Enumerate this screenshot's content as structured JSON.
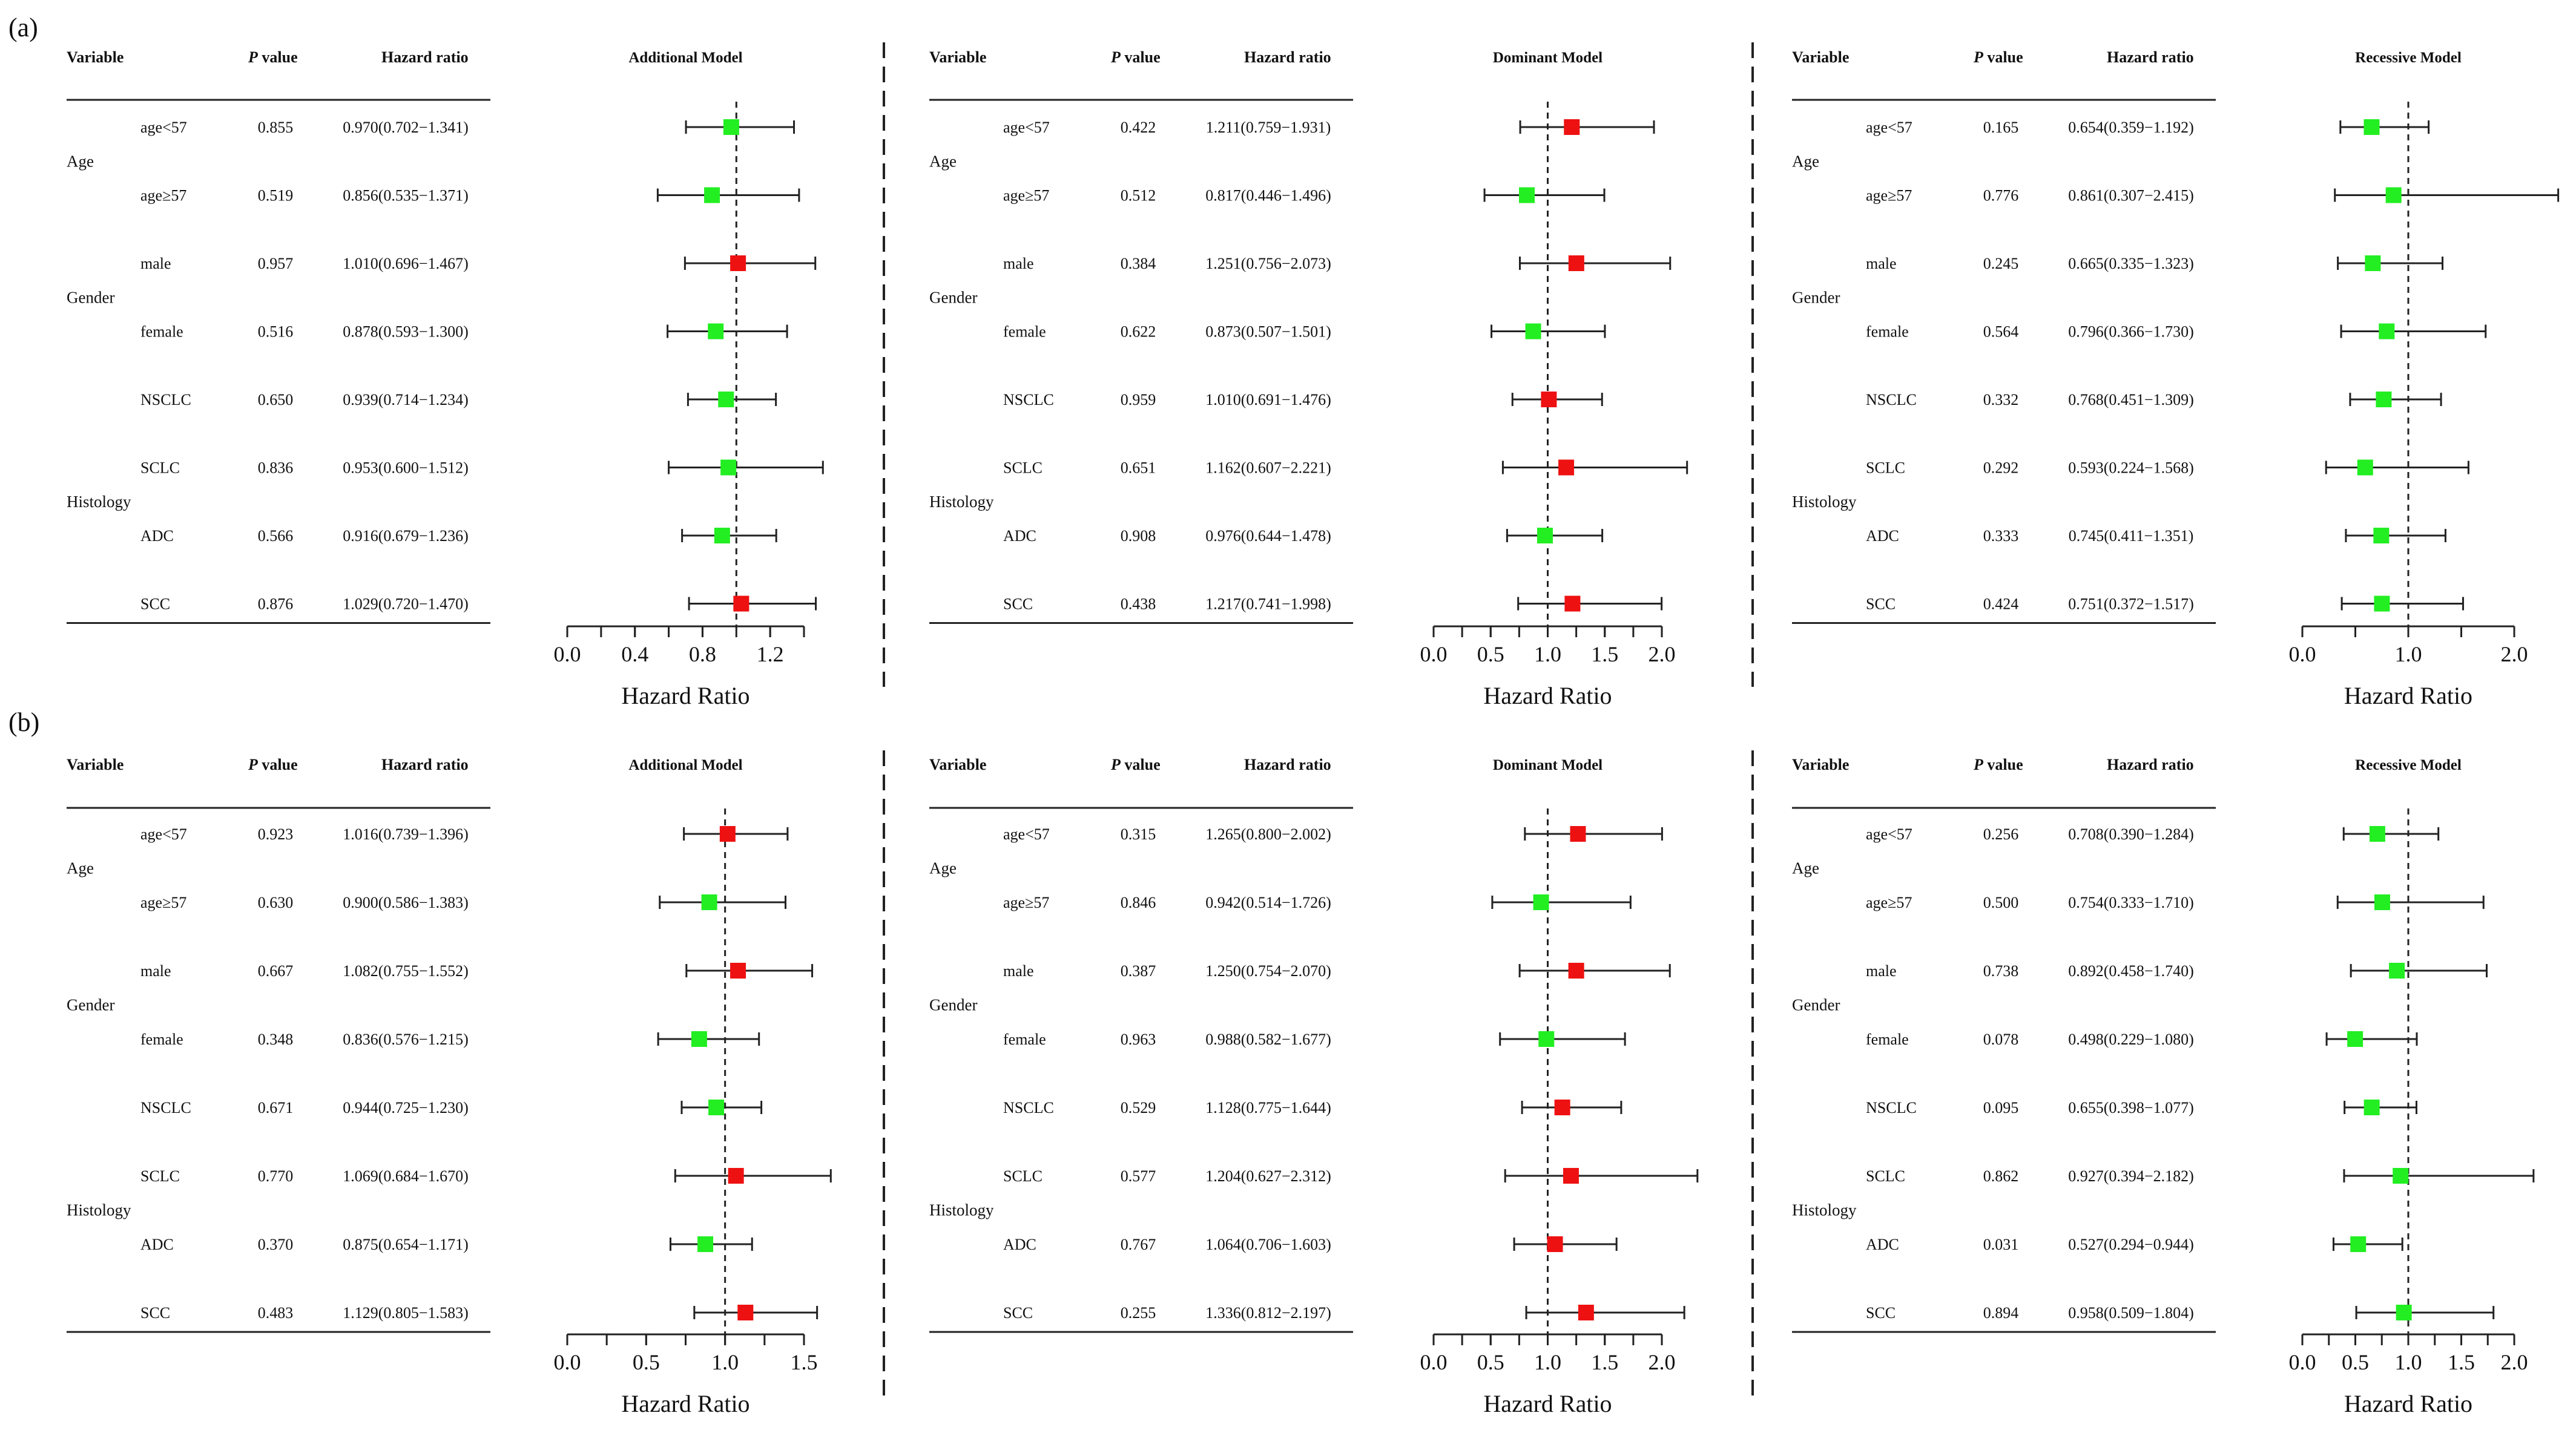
{
  "colors": {
    "protective": "#22ee22",
    "risk": "#ee1111",
    "line": "#222222"
  },
  "header": {
    "variable": "Variable",
    "p": "P",
    "value": " value",
    "hr": "Hazard ratio"
  },
  "xlabel": "Hazard Ratio",
  "chart_data": [
    {
      "panel": "(a)",
      "title": "Additional Model",
      "type": "forest",
      "xticks": [
        "0.0",
        "0.4",
        "0.8",
        "1.2"
      ],
      "xlim": [
        0.0,
        1.4
      ],
      "minor_step": 0.2,
      "reference": 1.0,
      "groups": [
        {
          "label": "Age",
          "rows": [
            0,
            1
          ]
        },
        {
          "label": "Gender",
          "rows": [
            2,
            3
          ]
        },
        {
          "label": "Histology",
          "rows": [
            4,
            5,
            6,
            7
          ]
        }
      ],
      "rows": [
        {
          "sub": "age<57",
          "p": "0.855",
          "hr_text": "0.970(0.702−1.341)",
          "hr": 0.97,
          "lo": 0.702,
          "hi": 1.341
        },
        {
          "sub": "age≥57",
          "p": "0.519",
          "hr_text": "0.856(0.535−1.371)",
          "hr": 0.856,
          "lo": 0.535,
          "hi": 1.371
        },
        {
          "sub": "male",
          "p": "0.957",
          "hr_text": "1.010(0.696−1.467)",
          "hr": 1.01,
          "lo": 0.696,
          "hi": 1.467
        },
        {
          "sub": "female",
          "p": "0.516",
          "hr_text": "0.878(0.593−1.300)",
          "hr": 0.878,
          "lo": 0.593,
          "hi": 1.3
        },
        {
          "sub": "NSCLC",
          "p": "0.650",
          "hr_text": "0.939(0.714−1.234)",
          "hr": 0.939,
          "lo": 0.714,
          "hi": 1.234
        },
        {
          "sub": "SCLC",
          "p": "0.836",
          "hr_text": "0.953(0.600−1.512)",
          "hr": 0.953,
          "lo": 0.6,
          "hi": 1.512
        },
        {
          "sub": "ADC",
          "p": "0.566",
          "hr_text": "0.916(0.679−1.236)",
          "hr": 0.916,
          "lo": 0.679,
          "hi": 1.236
        },
        {
          "sub": "SCC",
          "p": "0.876",
          "hr_text": "1.029(0.720−1.470)",
          "hr": 1.029,
          "lo": 0.72,
          "hi": 1.47
        }
      ]
    },
    {
      "panel": "(a)",
      "title": "Dominant Model",
      "type": "forest",
      "xticks": [
        "0.0",
        "0.5",
        "1.0",
        "1.5",
        "2.0"
      ],
      "xlim": [
        0.0,
        2.0
      ],
      "minor_step": 0.25,
      "reference": 1.0,
      "groups": [
        {
          "label": "Age",
          "rows": [
            0,
            1
          ]
        },
        {
          "label": "Gender",
          "rows": [
            2,
            3
          ]
        },
        {
          "label": "Histology",
          "rows": [
            4,
            5,
            6,
            7
          ]
        }
      ],
      "rows": [
        {
          "sub": "age<57",
          "p": "0.422",
          "hr_text": "1.211(0.759−1.931)",
          "hr": 1.211,
          "lo": 0.759,
          "hi": 1.931
        },
        {
          "sub": "age≥57",
          "p": "0.512",
          "hr_text": "0.817(0.446−1.496)",
          "hr": 0.817,
          "lo": 0.446,
          "hi": 1.496
        },
        {
          "sub": "male",
          "p": "0.384",
          "hr_text": "1.251(0.756−2.073)",
          "hr": 1.251,
          "lo": 0.756,
          "hi": 2.073
        },
        {
          "sub": "female",
          "p": "0.622",
          "hr_text": "0.873(0.507−1.501)",
          "hr": 0.873,
          "lo": 0.507,
          "hi": 1.501
        },
        {
          "sub": "NSCLC",
          "p": "0.959",
          "hr_text": "1.010(0.691−1.476)",
          "hr": 1.01,
          "lo": 0.691,
          "hi": 1.476
        },
        {
          "sub": "SCLC",
          "p": "0.651",
          "hr_text": "1.162(0.607−2.221)",
          "hr": 1.162,
          "lo": 0.607,
          "hi": 2.221
        },
        {
          "sub": "ADC",
          "p": "0.908",
          "hr_text": "0.976(0.644−1.478)",
          "hr": 0.976,
          "lo": 0.644,
          "hi": 1.478
        },
        {
          "sub": "SCC",
          "p": "0.438",
          "hr_text": "1.217(0.741−1.998)",
          "hr": 1.217,
          "lo": 0.741,
          "hi": 1.998
        }
      ]
    },
    {
      "panel": "(a)",
      "title": "Recessive Model",
      "type": "forest",
      "xticks": [
        "0.0",
        "1.0",
        "2.0"
      ],
      "xlim": [
        0.0,
        2.0
      ],
      "minor_step": 0.5,
      "reference": 1.0,
      "groups": [
        {
          "label": "Age",
          "rows": [
            0,
            1
          ]
        },
        {
          "label": "Gender",
          "rows": [
            2,
            3
          ]
        },
        {
          "label": "Histology",
          "rows": [
            4,
            5,
            6,
            7
          ]
        }
      ],
      "rows": [
        {
          "sub": "age<57",
          "p": "0.165",
          "hr_text": "0.654(0.359−1.192)",
          "hr": 0.654,
          "lo": 0.359,
          "hi": 1.192
        },
        {
          "sub": "age≥57",
          "p": "0.776",
          "hr_text": "0.861(0.307−2.415)",
          "hr": 0.861,
          "lo": 0.307,
          "hi": 2.415
        },
        {
          "sub": "male",
          "p": "0.245",
          "hr_text": "0.665(0.335−1.323)",
          "hr": 0.665,
          "lo": 0.335,
          "hi": 1.323
        },
        {
          "sub": "female",
          "p": "0.564",
          "hr_text": "0.796(0.366−1.730)",
          "hr": 0.796,
          "lo": 0.366,
          "hi": 1.73
        },
        {
          "sub": "NSCLC",
          "p": "0.332",
          "hr_text": "0.768(0.451−1.309)",
          "hr": 0.768,
          "lo": 0.451,
          "hi": 1.309
        },
        {
          "sub": "SCLC",
          "p": "0.292",
          "hr_text": "0.593(0.224−1.568)",
          "hr": 0.593,
          "lo": 0.224,
          "hi": 1.568
        },
        {
          "sub": "ADC",
          "p": "0.333",
          "hr_text": "0.745(0.411−1.351)",
          "hr": 0.745,
          "lo": 0.411,
          "hi": 1.351
        },
        {
          "sub": "SCC",
          "p": "0.424",
          "hr_text": "0.751(0.372−1.517)",
          "hr": 0.751,
          "lo": 0.372,
          "hi": 1.517
        }
      ]
    },
    {
      "panel": "(b)",
      "title": "Additional Model",
      "type": "forest",
      "xticks": [
        "0.0",
        "0.5",
        "1.0",
        "1.5"
      ],
      "xlim": [
        0.0,
        1.5
      ],
      "minor_step": 0.25,
      "reference": 1.0,
      "groups": [
        {
          "label": "Age",
          "rows": [
            0,
            1
          ]
        },
        {
          "label": "Gender",
          "rows": [
            2,
            3
          ]
        },
        {
          "label": "Histology",
          "rows": [
            4,
            5,
            6,
            7
          ]
        }
      ],
      "rows": [
        {
          "sub": "age<57",
          "p": "0.923",
          "hr_text": "1.016(0.739−1.396)",
          "hr": 1.016,
          "lo": 0.739,
          "hi": 1.396
        },
        {
          "sub": "age≥57",
          "p": "0.630",
          "hr_text": "0.900(0.586−1.383)",
          "hr": 0.9,
          "lo": 0.586,
          "hi": 1.383
        },
        {
          "sub": "male",
          "p": "0.667",
          "hr_text": "1.082(0.755−1.552)",
          "hr": 1.082,
          "lo": 0.755,
          "hi": 1.552
        },
        {
          "sub": "female",
          "p": "0.348",
          "hr_text": "0.836(0.576−1.215)",
          "hr": 0.836,
          "lo": 0.576,
          "hi": 1.215
        },
        {
          "sub": "NSCLC",
          "p": "0.671",
          "hr_text": "0.944(0.725−1.230)",
          "hr": 0.944,
          "lo": 0.725,
          "hi": 1.23
        },
        {
          "sub": "SCLC",
          "p": "0.770",
          "hr_text": "1.069(0.684−1.670)",
          "hr": 1.069,
          "lo": 0.684,
          "hi": 1.67
        },
        {
          "sub": "ADC",
          "p": "0.370",
          "hr_text": "0.875(0.654−1.171)",
          "hr": 0.875,
          "lo": 0.654,
          "hi": 1.171
        },
        {
          "sub": "SCC",
          "p": "0.483",
          "hr_text": "1.129(0.805−1.583)",
          "hr": 1.129,
          "lo": 0.805,
          "hi": 1.583
        }
      ]
    },
    {
      "panel": "(b)",
      "title": "Dominant Model",
      "type": "forest",
      "xticks": [
        "0.0",
        "0.5",
        "1.0",
        "1.5",
        "2.0"
      ],
      "xlim": [
        0.0,
        2.0
      ],
      "minor_step": 0.25,
      "reference": 1.0,
      "groups": [
        {
          "label": "Age",
          "rows": [
            0,
            1
          ]
        },
        {
          "label": "Gender",
          "rows": [
            2,
            3
          ]
        },
        {
          "label": "Histology",
          "rows": [
            4,
            5,
            6,
            7
          ]
        }
      ],
      "rows": [
        {
          "sub": "age<57",
          "p": "0.315",
          "hr_text": "1.265(0.800−2.002)",
          "hr": 1.265,
          "lo": 0.8,
          "hi": 2.002
        },
        {
          "sub": "age≥57",
          "p": "0.846",
          "hr_text": "0.942(0.514−1.726)",
          "hr": 0.942,
          "lo": 0.514,
          "hi": 1.726
        },
        {
          "sub": "male",
          "p": "0.387",
          "hr_text": "1.250(0.754−2.070)",
          "hr": 1.25,
          "lo": 0.754,
          "hi": 2.07
        },
        {
          "sub": "female",
          "p": "0.963",
          "hr_text": "0.988(0.582−1.677)",
          "hr": 0.988,
          "lo": 0.582,
          "hi": 1.677
        },
        {
          "sub": "NSCLC",
          "p": "0.529",
          "hr_text": "1.128(0.775−1.644)",
          "hr": 1.128,
          "lo": 0.775,
          "hi": 1.644
        },
        {
          "sub": "SCLC",
          "p": "0.577",
          "hr_text": "1.204(0.627−2.312)",
          "hr": 1.204,
          "lo": 0.627,
          "hi": 2.312
        },
        {
          "sub": "ADC",
          "p": "0.767",
          "hr_text": "1.064(0.706−1.603)",
          "hr": 1.064,
          "lo": 0.706,
          "hi": 1.603
        },
        {
          "sub": "SCC",
          "p": "0.255",
          "hr_text": "1.336(0.812−2.197)",
          "hr": 1.336,
          "lo": 0.812,
          "hi": 2.197
        }
      ]
    },
    {
      "panel": "(b)",
      "title": "Recessive Model",
      "type": "forest",
      "xticks": [
        "0.0",
        "0.5",
        "1.0",
        "1.5",
        "2.0"
      ],
      "xlim": [
        0.0,
        2.0
      ],
      "minor_step": 0.25,
      "reference": 1.0,
      "groups": [
        {
          "label": "Age",
          "rows": [
            0,
            1
          ]
        },
        {
          "label": "Gender",
          "rows": [
            2,
            3
          ]
        },
        {
          "label": "Histology",
          "rows": [
            4,
            5,
            6,
            7
          ]
        }
      ],
      "rows": [
        {
          "sub": "age<57",
          "p": "0.256",
          "hr_text": "0.708(0.390−1.284)",
          "hr": 0.708,
          "lo": 0.39,
          "hi": 1.284
        },
        {
          "sub": "age≥57",
          "p": "0.500",
          "hr_text": "0.754(0.333−1.710)",
          "hr": 0.754,
          "lo": 0.333,
          "hi": 1.71
        },
        {
          "sub": "male",
          "p": "0.738",
          "hr_text": "0.892(0.458−1.740)",
          "hr": 0.892,
          "lo": 0.458,
          "hi": 1.74
        },
        {
          "sub": "female",
          "p": "0.078",
          "hr_text": "0.498(0.229−1.080)",
          "hr": 0.498,
          "lo": 0.229,
          "hi": 1.08
        },
        {
          "sub": "NSCLC",
          "p": "0.095",
          "hr_text": "0.655(0.398−1.077)",
          "hr": 0.655,
          "lo": 0.398,
          "hi": 1.077
        },
        {
          "sub": "SCLC",
          "p": "0.862",
          "hr_text": "0.927(0.394−2.182)",
          "hr": 0.927,
          "lo": 0.394,
          "hi": 2.182
        },
        {
          "sub": "ADC",
          "p": "0.031",
          "hr_text": "0.527(0.294−0.944)",
          "hr": 0.527,
          "lo": 0.294,
          "hi": 0.944
        },
        {
          "sub": "SCC",
          "p": "0.894",
          "hr_text": "0.958(0.509−1.804)",
          "hr": 0.958,
          "lo": 0.509,
          "hi": 1.804
        }
      ]
    }
  ]
}
